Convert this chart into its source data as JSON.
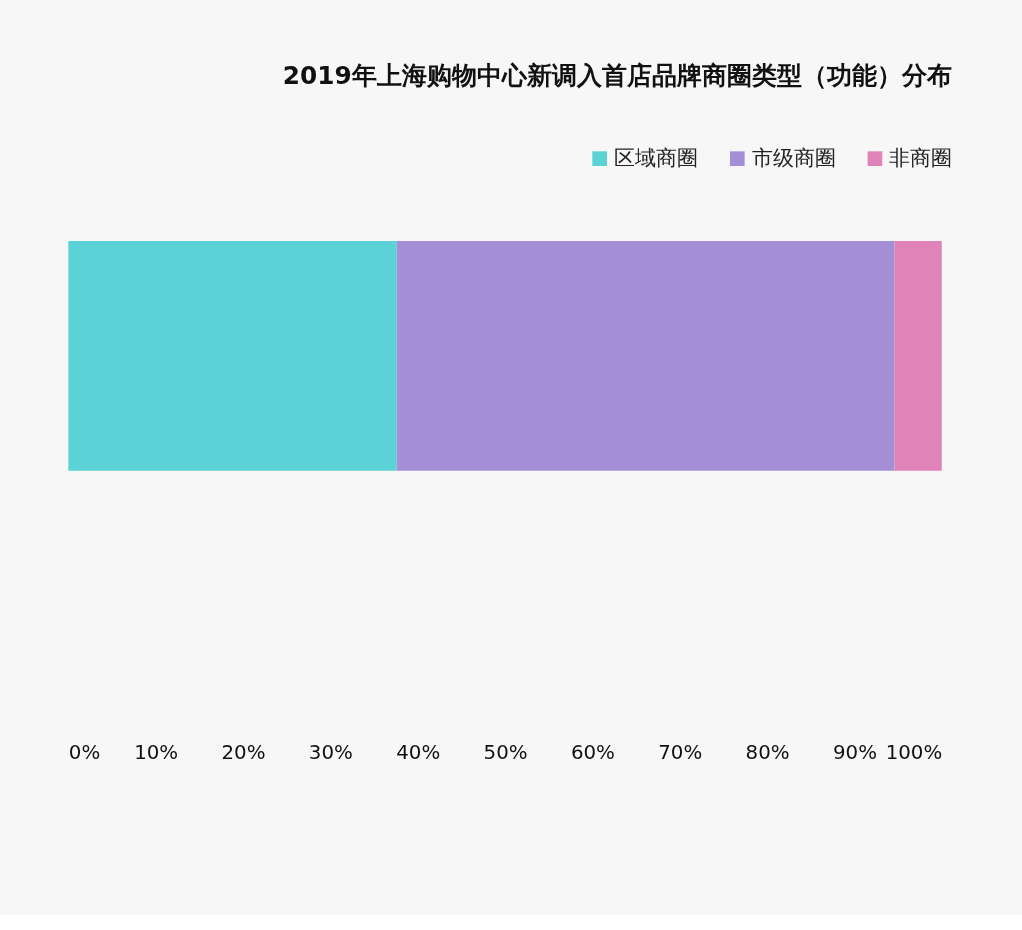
{
  "chart_data": {
    "type": "bar",
    "orientation": "horizontal",
    "stacked": true,
    "title": "2019年上海购物中心新调入首店品牌商圈类型（功能）分布",
    "categories": [
      null
    ],
    "series": [
      {
        "name": "区域商圈",
        "color": "#5bd3d6",
        "values": [
          37.6
        ]
      },
      {
        "name": "市级商圈",
        "color": "#a48fd6",
        "values": [
          57.0
        ]
      },
      {
        "name": "非商圈",
        "color": "#e083b8",
        "values": [
          5.4
        ]
      }
    ],
    "xlim": [
      0,
      100
    ],
    "xticks": [
      {
        "value": 0,
        "label": "0%"
      },
      {
        "value": 10,
        "label": "10%"
      },
      {
        "value": 20,
        "label": "20%"
      },
      {
        "value": 30,
        "label": "30%"
      },
      {
        "value": 40,
        "label": "40%"
      },
      {
        "value": 50,
        "label": "50%"
      },
      {
        "value": 60,
        "label": "60%"
      },
      {
        "value": 70,
        "label": "70%"
      },
      {
        "value": 80,
        "label": "80%"
      },
      {
        "value": 90,
        "label": "90%"
      },
      {
        "value": 100,
        "label": "100%"
      }
    ],
    "grid": false,
    "legend": "top right",
    "tick_labels": "x"
  }
}
